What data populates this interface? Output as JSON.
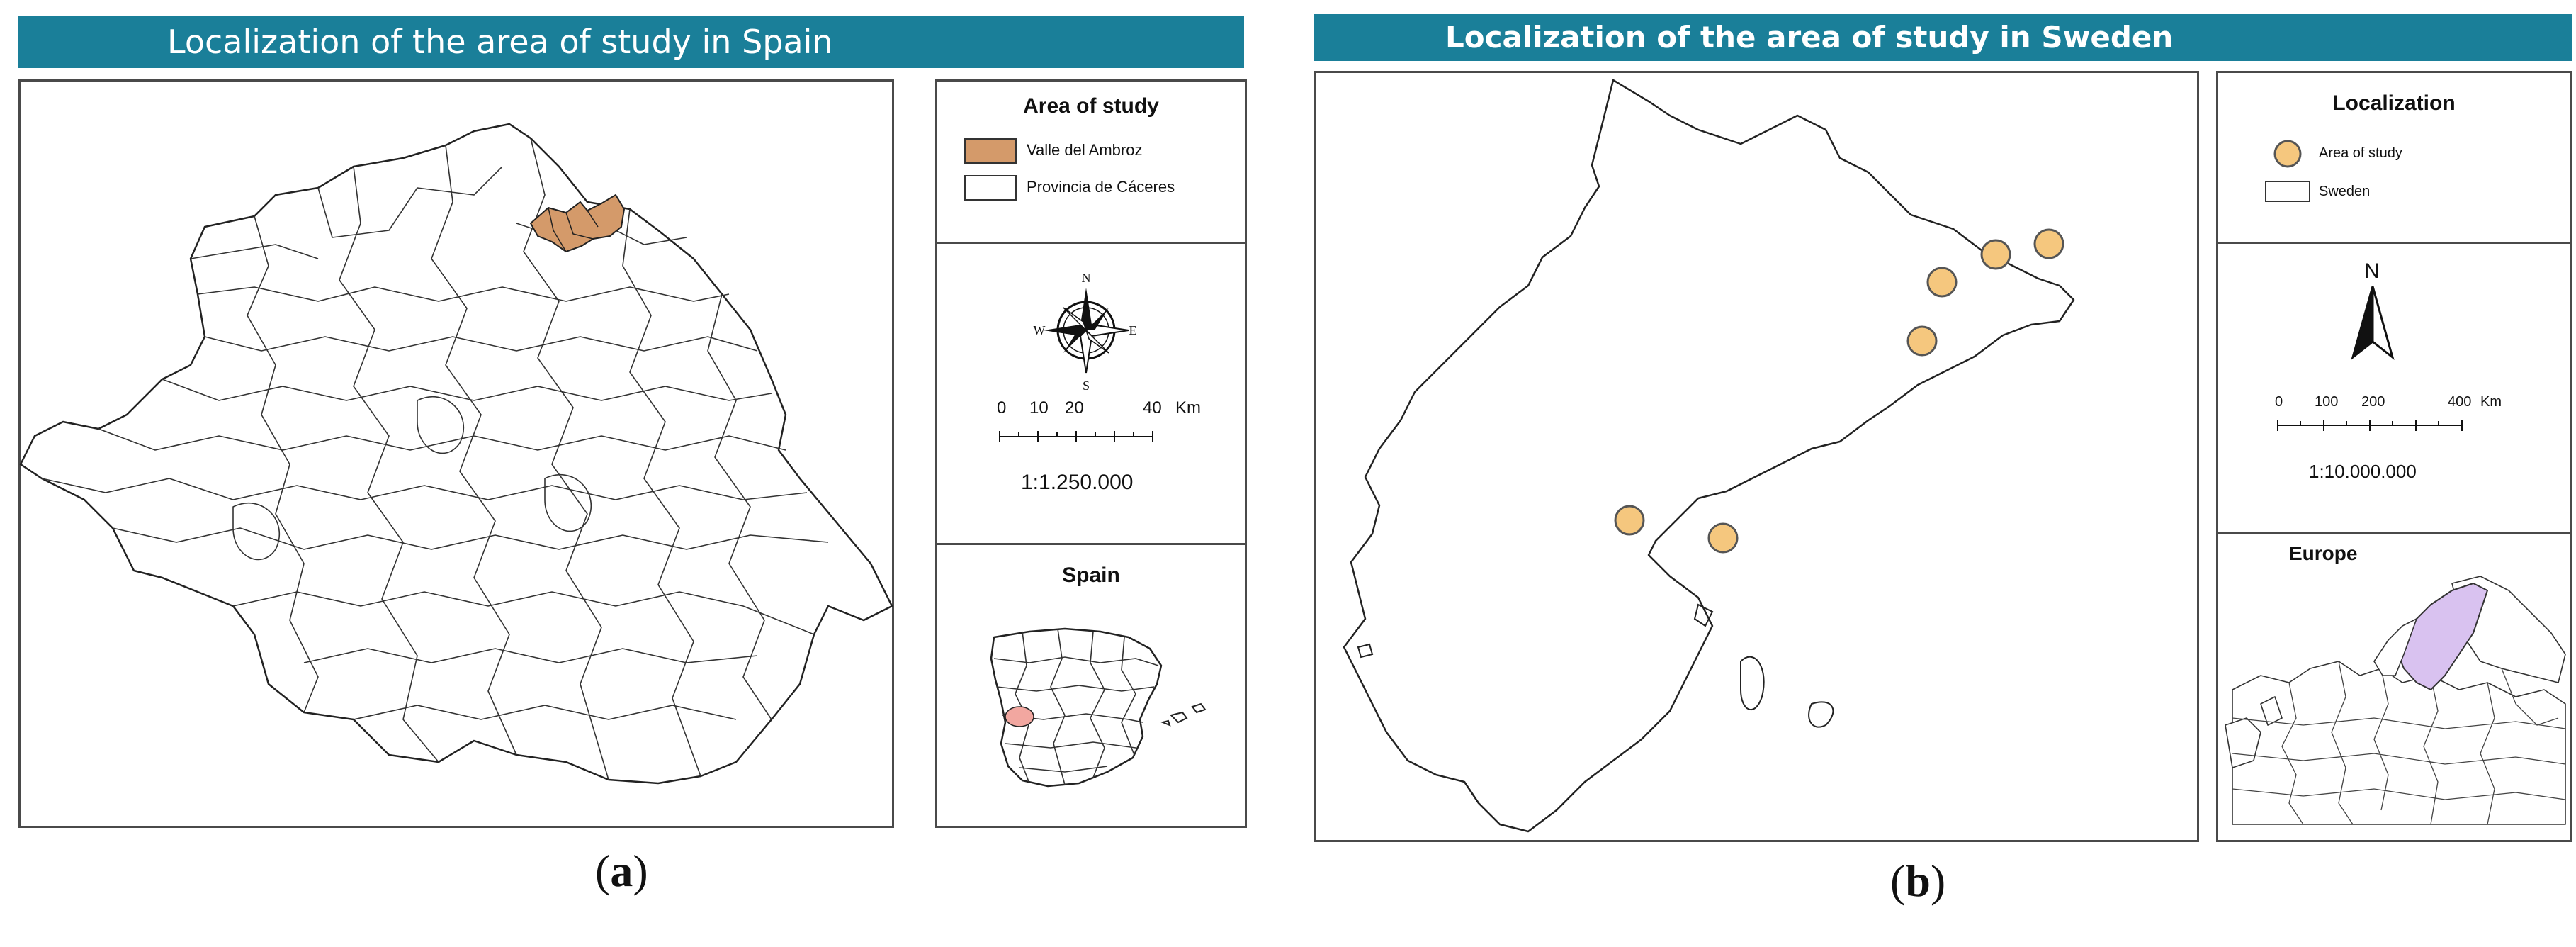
{
  "panel_a": {
    "banner_title": "Localization of the area of study in Spain",
    "legend": {
      "title": "Area of study",
      "items": [
        {
          "label": "Valle del Ambroz",
          "color": "#d49a6a"
        },
        {
          "label": "Provincia de Cáceres",
          "color": "#ffffff"
        }
      ]
    },
    "compass": {
      "n": "N",
      "s": "S",
      "e": "E",
      "w": "W"
    },
    "scale": {
      "ticks": [
        "0",
        "10",
        "20",
        "40"
      ],
      "unit": "Km",
      "ratio": "1:1.250.000"
    },
    "inset": {
      "title": "Spain",
      "highlight_color": "#f2a7a0"
    },
    "caption_letter": "a"
  },
  "panel_b": {
    "banner_title": "Localization of the  area of study in Sweden",
    "legend": {
      "title": "Localization",
      "items": [
        {
          "label": "Area of study",
          "color": "#f5c77e"
        },
        {
          "label": "Sweden",
          "color": "#ffffff"
        }
      ]
    },
    "north_label": "N",
    "scale": {
      "ticks": [
        "0",
        "100",
        "200",
        "400"
      ],
      "unit": "Km",
      "ratio": "1:10.000.000"
    },
    "inset": {
      "title": "Europe",
      "highlight_color": "#d9c2f0"
    },
    "caption_letter": "b"
  },
  "colors": {
    "banner": "#1a7f99",
    "study_area": "#d49a6a",
    "study_point": "#f5c77e"
  }
}
